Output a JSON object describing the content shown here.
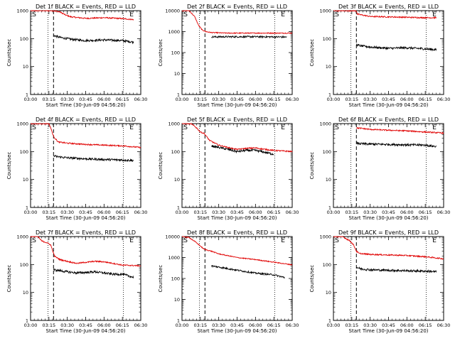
{
  "figure": {
    "x_tick_labels": [
      "03:00",
      "03:15",
      "03:30",
      "03:45",
      "06:00",
      "06:15",
      "06:30"
    ],
    "y_tick_labels": [
      "1",
      "10",
      "100",
      "1000",
      "10000"
    ],
    "xlabel": "Start Time (30-Jun-09 04:56:20)",
    "ylabel": "Counts/sec",
    "marker_start": "S",
    "marker_end": "E",
    "series_colors": {
      "events": "#000000",
      "lld": "#e00000"
    }
  },
  "chart_data": [
    {
      "type": "line",
      "title": "Det 1f BLACK = Events, RED = LLD",
      "ylim": [
        1,
        1000
      ],
      "log_y": true,
      "x_ticks": [
        "03:00",
        "03:15",
        "03:30",
        "03:45",
        "06:00",
        "06:15",
        "06:30"
      ],
      "series": [
        {
          "name": "LLD",
          "x": [
            0,
            0.5,
            1.0,
            1.25,
            1.6,
            1.9,
            2.2,
            3.0,
            4.0,
            5.0,
            5.6
          ],
          "y": [
            1000,
            1000,
            1000,
            1000,
            900,
            700,
            600,
            530,
            560,
            520,
            480
          ]
        },
        {
          "name": "Events",
          "x": [
            1.25,
            1.6,
            2.2,
            3.0,
            4.0,
            5.0,
            5.6
          ],
          "y": [
            130,
            110,
            95,
            85,
            90,
            85,
            75
          ]
        }
      ]
    },
    {
      "type": "line",
      "title": "Det 2f BLACK = Events, RED = LLD",
      "ylim": [
        1,
        10000
      ],
      "log_y": true,
      "x_ticks": [
        "03:00",
        "03:15",
        "03:30",
        "03:45",
        "06:00",
        "06:15",
        "06:30"
      ],
      "series": [
        {
          "name": "LLD",
          "x": [
            0,
            0.4,
            0.7,
            0.9,
            1.1,
            1.3,
            1.6,
            2.5,
            4.0,
            5.0,
            6.0
          ],
          "y": [
            10000,
            10000,
            5000,
            2000,
            1200,
            1000,
            900,
            850,
            850,
            850,
            850
          ]
        },
        {
          "name": "Events",
          "x": [
            1.6,
            2.5,
            4.0,
            5.0,
            5.7
          ],
          "y": [
            560,
            570,
            570,
            560,
            550
          ]
        }
      ]
    },
    {
      "type": "line",
      "title": "Det 3f BLACK = Events, RED = LLD",
      "ylim": [
        1,
        1000
      ],
      "log_y": true,
      "x_ticks": [
        "03:00",
        "03:15",
        "03:30",
        "03:45",
        "06:00",
        "06:15",
        "06:30"
      ],
      "series": [
        {
          "name": "LLD",
          "x": [
            0,
            0.6,
            1.0,
            1.25,
            1.3,
            2.0,
            3.0,
            4.0,
            5.0,
            5.6
          ],
          "y": [
            1000,
            1000,
            1000,
            1000,
            750,
            620,
            600,
            580,
            560,
            560
          ]
        },
        {
          "name": "Events",
          "x": [
            1.25,
            1.5,
            2.0,
            3.0,
            4.0,
            5.0,
            5.6
          ],
          "y": [
            60,
            55,
            50,
            45,
            47,
            43,
            40
          ]
        }
      ]
    },
    {
      "type": "line",
      "title": "Det 4f BLACK = Events, RED = LLD",
      "ylim": [
        1,
        1000
      ],
      "log_y": true,
      "x_ticks": [
        "03:00",
        "03:15",
        "03:30",
        "03:45",
        "06:00",
        "06:15",
        "06:30"
      ],
      "series": [
        {
          "name": "LLD",
          "x": [
            0,
            0.5,
            1.0,
            1.1,
            1.25,
            1.5,
            2.0,
            3.0,
            4.0,
            5.0,
            6.0
          ],
          "y": [
            1000,
            1000,
            1000,
            700,
            350,
            220,
            200,
            180,
            170,
            160,
            140
          ]
        },
        {
          "name": "Events",
          "x": [
            1.25,
            1.5,
            2.0,
            3.0,
            4.0,
            5.0,
            5.6
          ],
          "y": [
            70,
            65,
            60,
            55,
            52,
            50,
            48
          ]
        }
      ]
    },
    {
      "type": "line",
      "title": "Det 5f BLACK = Events, RED = LLD",
      "ylim": [
        1,
        1000
      ],
      "log_y": true,
      "x_ticks": [
        "03:00",
        "03:15",
        "03:30",
        "03:45",
        "06:00",
        "06:15",
        "06:30"
      ],
      "series": [
        {
          "name": "LLD",
          "x": [
            0,
            0.5,
            0.8,
            1.0,
            1.2,
            1.5,
            2.0,
            2.5,
            3.0,
            3.5,
            4.0,
            4.5,
            5.0,
            6.0
          ],
          "y": [
            1000,
            1000,
            700,
            500,
            450,
            250,
            170,
            140,
            120,
            130,
            135,
            120,
            110,
            100
          ]
        },
        {
          "name": "Events",
          "x": [
            1.6,
            2.0,
            2.5,
            3.0,
            3.5,
            4.0,
            4.5,
            5.0
          ],
          "y": [
            160,
            140,
            120,
            100,
            110,
            110,
            95,
            80
          ]
        }
      ]
    },
    {
      "type": "line",
      "title": "Det 6f BLACK = Events, RED = LLD",
      "ylim": [
        1,
        1000
      ],
      "log_y": true,
      "x_ticks": [
        "03:00",
        "03:15",
        "03:30",
        "03:45",
        "06:00",
        "06:15",
        "06:30"
      ],
      "series": [
        {
          "name": "LLD",
          "x": [
            1.25,
            1.5,
            2.0,
            3.0,
            4.0,
            5.0,
            6.0
          ],
          "y": [
            700,
            680,
            620,
            580,
            550,
            500,
            460
          ]
        },
        {
          "name": "Events",
          "x": [
            1.25,
            1.5,
            2.0,
            3.0,
            4.0,
            5.0,
            5.6
          ],
          "y": [
            200,
            190,
            185,
            180,
            175,
            170,
            150
          ]
        }
      ]
    },
    {
      "type": "line",
      "title": "Det 7f BLACK = Events, RED = LLD",
      "ylim": [
        1,
        1000
      ],
      "log_y": true,
      "x_ticks": [
        "03:00",
        "03:15",
        "03:30",
        "03:45",
        "06:00",
        "06:15",
        "06:30"
      ],
      "series": [
        {
          "name": "LLD",
          "x": [
            0,
            0.4,
            0.6,
            0.9,
            1.1,
            1.3,
            1.6,
            2.0,
            2.5,
            3.0,
            3.5,
            4.0,
            4.5,
            5.0,
            6.0
          ],
          "y": [
            1000,
            1000,
            700,
            600,
            500,
            200,
            150,
            130,
            110,
            120,
            130,
            125,
            110,
            95,
            90
          ]
        },
        {
          "name": "Events",
          "x": [
            1.25,
            1.6,
            2.0,
            2.5,
            3.0,
            3.5,
            4.0,
            4.5,
            5.0,
            5.6
          ],
          "y": [
            65,
            60,
            55,
            50,
            52,
            55,
            50,
            45,
            45,
            35
          ]
        }
      ]
    },
    {
      "type": "line",
      "title": "Det 8f BLACK = Events, RED = LLD",
      "ylim": [
        1,
        10000
      ],
      "log_y": true,
      "x_ticks": [
        "03:00",
        "03:15",
        "03:30",
        "03:45",
        "06:00",
        "06:15",
        "06:30"
      ],
      "series": [
        {
          "name": "LLD",
          "x": [
            0,
            0.4,
            0.8,
            1.2,
            1.6,
            2.0,
            3.0,
            4.0,
            5.0,
            6.0
          ],
          "y": [
            10000,
            9000,
            5000,
            2500,
            2000,
            1500,
            1000,
            800,
            600,
            450
          ]
        },
        {
          "name": "Events",
          "x": [
            1.6,
            2.0,
            3.0,
            4.0,
            5.0,
            5.6
          ],
          "y": [
            400,
            350,
            250,
            180,
            150,
            110
          ]
        }
      ]
    },
    {
      "type": "line",
      "title": "Det 9f BLACK = Events, RED = LLD",
      "ylim": [
        1,
        1000
      ],
      "log_y": true,
      "x_ticks": [
        "03:00",
        "03:15",
        "03:30",
        "03:45",
        "06:00",
        "06:15",
        "06:30"
      ],
      "series": [
        {
          "name": "LLD",
          "x": [
            0,
            0.5,
            0.9,
            1.1,
            1.25,
            1.4,
            2.0,
            3.0,
            4.0,
            5.0,
            6.0
          ],
          "y": [
            1000,
            1000,
            700,
            500,
            300,
            250,
            230,
            220,
            210,
            190,
            160
          ]
        },
        {
          "name": "Events",
          "x": [
            1.25,
            1.5,
            2.0,
            3.0,
            4.0,
            5.0,
            5.6
          ],
          "y": [
            80,
            70,
            65,
            62,
            60,
            58,
            55
          ]
        }
      ]
    }
  ]
}
